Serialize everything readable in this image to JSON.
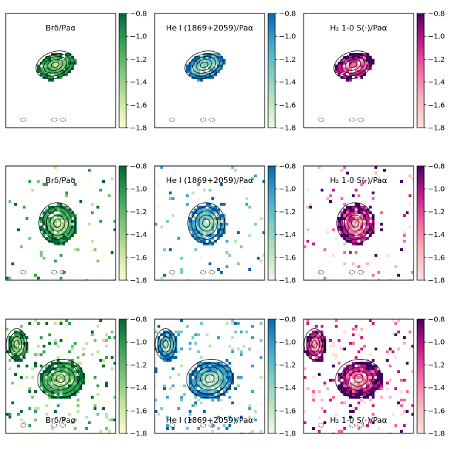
{
  "figure": {
    "rows": 3,
    "cols": 3,
    "colorbar": {
      "ticks": [
        "−0.8",
        "−1.0",
        "−1.2",
        "−1.4",
        "−1.6",
        "−1.8"
      ],
      "min": -1.8,
      "max": -0.8
    },
    "colormaps": {
      "green": [
        "#ffffcc",
        "#c2e699",
        "#78c679",
        "#31a354",
        "#006837"
      ],
      "blue": [
        "#f0f9e8",
        "#bae4bc",
        "#7bccc4",
        "#43a2ca",
        "#0868ac"
      ],
      "pink": [
        "#fde0dd",
        "#fbb4b9",
        "#f768a1",
        "#c51b8a",
        "#49006a"
      ]
    },
    "columns": [
      {
        "ratio_label": "Brδ/Paα",
        "cmap": "green"
      },
      {
        "ratio_label": "He I (1869+2059)/Paα",
        "cmap": "blue"
      },
      {
        "ratio_label": "H₂ 1-0 S(·)/Paα",
        "cmap": "pink"
      }
    ],
    "label_position": [
      "top",
      "top",
      "bottom"
    ]
  }
}
